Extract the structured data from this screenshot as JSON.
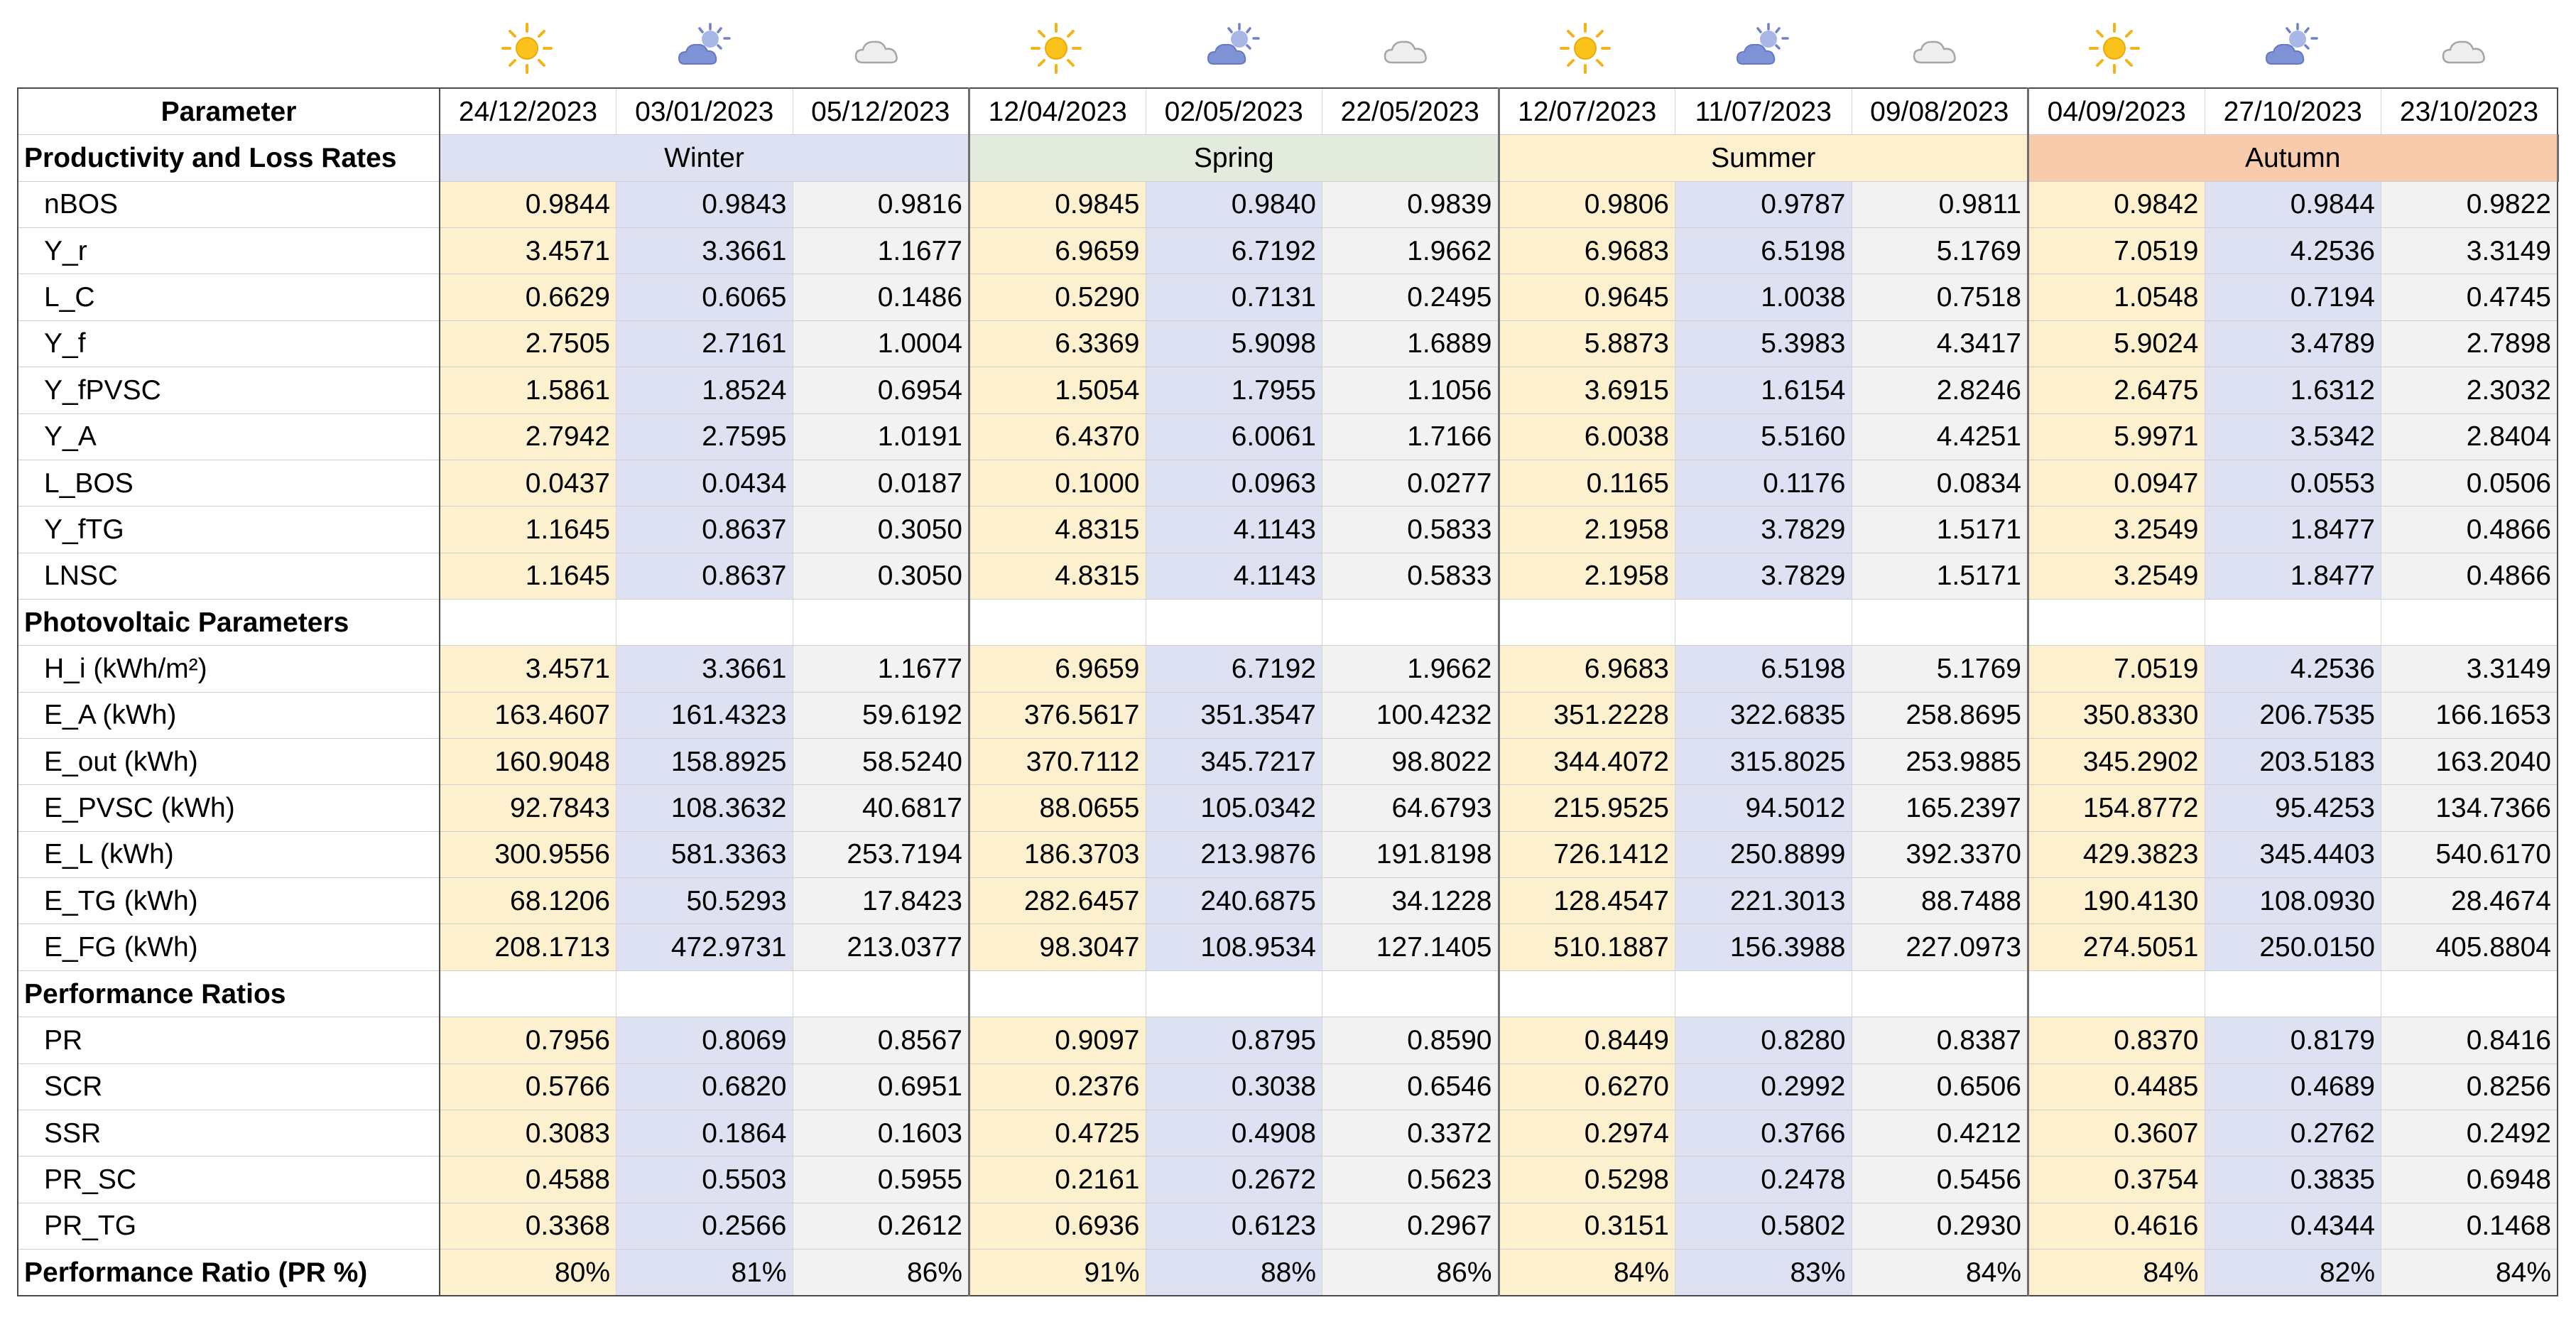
{
  "weather_icons": [
    {
      "name": "sun-icon",
      "kind": "sun"
    },
    {
      "name": "partly-cloudy-icon",
      "kind": "partly"
    },
    {
      "name": "cloud-icon",
      "kind": "cloud"
    },
    {
      "name": "sun-icon",
      "kind": "sun"
    },
    {
      "name": "partly-cloudy-icon",
      "kind": "partly"
    },
    {
      "name": "cloud-icon",
      "kind": "cloud"
    },
    {
      "name": "sun-icon",
      "kind": "sun"
    },
    {
      "name": "partly-cloudy-icon",
      "kind": "partly"
    },
    {
      "name": "cloud-icon",
      "kind": "cloud"
    },
    {
      "name": "sun-icon",
      "kind": "sun"
    },
    {
      "name": "partly-cloudy-icon",
      "kind": "partly"
    },
    {
      "name": "cloud-icon",
      "kind": "cloud"
    }
  ],
  "colors": {
    "sunny_column": "#fdf0cf",
    "partly_column": "#dde1f1",
    "cloudy_column": "#f2f2f2",
    "winter": "#dde1f1",
    "spring": "#e3ecdc",
    "summer": "#fdf0cf",
    "autumn": "#f8cbac",
    "border": "#4a4a4a"
  },
  "table": {
    "header": {
      "label": "Parameter",
      "dates": [
        "24/12/2023",
        "03/01/2023",
        "05/12/2023",
        "12/04/2023",
        "02/05/2023",
        "22/05/2023",
        "12/07/2023",
        "11/07/2023",
        "09/08/2023",
        "04/09/2023",
        "27/10/2023",
        "23/10/2023"
      ]
    },
    "sections": [
      {
        "title": "Productivity and Loss Rates",
        "seasons": [
          {
            "label": "Winter",
            "color": "#dde1f1"
          },
          {
            "label": "Spring",
            "color": "#e3ecdc"
          },
          {
            "label": "Summer",
            "color": "#fdf0cf"
          },
          {
            "label": "Autumn",
            "color": "#f8cbac"
          }
        ],
        "rows": [
          {
            "label": "nBOS",
            "values": [
              "0.9844",
              "0.9843",
              "0.9816",
              "0.9845",
              "0.9840",
              "0.9839",
              "0.9806",
              "0.9787",
              "0.9811",
              "0.9842",
              "0.9844",
              "0.9822"
            ]
          },
          {
            "label": "Y_r",
            "values": [
              "3.4571",
              "3.3661",
              "1.1677",
              "6.9659",
              "6.7192",
              "1.9662",
              "6.9683",
              "6.5198",
              "5.1769",
              "7.0519",
              "4.2536",
              "3.3149"
            ]
          },
          {
            "label": "L_C",
            "values": [
              "0.6629",
              "0.6065",
              "0.1486",
              "0.5290",
              "0.7131",
              "0.2495",
              "0.9645",
              "1.0038",
              "0.7518",
              "1.0548",
              "0.7194",
              "0.4745"
            ]
          },
          {
            "label": "Y_f",
            "values": [
              "2.7505",
              "2.7161",
              "1.0004",
              "6.3369",
              "5.9098",
              "1.6889",
              "5.8873",
              "5.3983",
              "4.3417",
              "5.9024",
              "3.4789",
              "2.7898"
            ]
          },
          {
            "label": "Y_fPVSC",
            "values": [
              "1.5861",
              "1.8524",
              "0.6954",
              "1.5054",
              "1.7955",
              "1.1056",
              "3.6915",
              "1.6154",
              "2.8246",
              "2.6475",
              "1.6312",
              "2.3032"
            ]
          },
          {
            "label": "Y_A",
            "values": [
              "2.7942",
              "2.7595",
              "1.0191",
              "6.4370",
              "6.0061",
              "1.7166",
              "6.0038",
              "5.5160",
              "4.4251",
              "5.9971",
              "3.5342",
              "2.8404"
            ]
          },
          {
            "label": "L_BOS",
            "values": [
              "0.0437",
              "0.0434",
              "0.0187",
              "0.1000",
              "0.0963",
              "0.0277",
              "0.1165",
              "0.1176",
              "0.0834",
              "0.0947",
              "0.0553",
              "0.0506"
            ]
          },
          {
            "label": "Y_fTG",
            "values": [
              "1.1645",
              "0.8637",
              "0.3050",
              "4.8315",
              "4.1143",
              "0.5833",
              "2.1958",
              "3.7829",
              "1.5171",
              "3.2549",
              "1.8477",
              "0.4866"
            ]
          },
          {
            "label": "LNSC",
            "values": [
              "1.1645",
              "0.8637",
              "0.3050",
              "4.8315",
              "4.1143",
              "0.5833",
              "2.1958",
              "3.7829",
              "1.5171",
              "3.2549",
              "1.8477",
              "0.4866"
            ]
          }
        ]
      },
      {
        "title": "Photovoltaic Parameters",
        "rows": [
          {
            "label": "H_i (kWh/m²)",
            "values": [
              "3.4571",
              "3.3661",
              "1.1677",
              "6.9659",
              "6.7192",
              "1.9662",
              "6.9683",
              "6.5198",
              "5.1769",
              "7.0519",
              "4.2536",
              "3.3149"
            ]
          },
          {
            "label": "E_A (kWh)",
            "values": [
              "163.4607",
              "161.4323",
              "59.6192",
              "376.5617",
              "351.3547",
              "100.4232",
              "351.2228",
              "322.6835",
              "258.8695",
              "350.8330",
              "206.7535",
              "166.1653"
            ]
          },
          {
            "label": "E_out (kWh)",
            "values": [
              "160.9048",
              "158.8925",
              "58.5240",
              "370.7112",
              "345.7217",
              "98.8022",
              "344.4072",
              "315.8025",
              "253.9885",
              "345.2902",
              "203.5183",
              "163.2040"
            ]
          },
          {
            "label": "E_PVSC (kWh)",
            "values": [
              "92.7843",
              "108.3632",
              "40.6817",
              "88.0655",
              "105.0342",
              "64.6793",
              "215.9525",
              "94.5012",
              "165.2397",
              "154.8772",
              "95.4253",
              "134.7366"
            ]
          },
          {
            "label": "E_L (kWh)",
            "values": [
              "300.9556",
              "581.3363",
              "253.7194",
              "186.3703",
              "213.9876",
              "191.8198",
              "726.1412",
              "250.8899",
              "392.3370",
              "429.3823",
              "345.4403",
              "540.6170"
            ]
          },
          {
            "label": "E_TG (kWh)",
            "values": [
              "68.1206",
              "50.5293",
              "17.8423",
              "282.6457",
              "240.6875",
              "34.1228",
              "128.4547",
              "221.3013",
              "88.7488",
              "190.4130",
              "108.0930",
              "28.4674"
            ]
          },
          {
            "label": "E_FG (kWh)",
            "values": [
              "208.1713",
              "472.9731",
              "213.0377",
              "98.3047",
              "108.9534",
              "127.1405",
              "510.1887",
              "156.3988",
              "227.0973",
              "274.5051",
              "250.0150",
              "405.8804"
            ]
          }
        ]
      },
      {
        "title": "Performance Ratios",
        "rows": [
          {
            "label": "PR",
            "values": [
              "0.7956",
              "0.8069",
              "0.8567",
              "0.9097",
              "0.8795",
              "0.8590",
              "0.8449",
              "0.8280",
              "0.8387",
              "0.8370",
              "0.8179",
              "0.8416"
            ]
          },
          {
            "label": "SCR",
            "values": [
              "0.5766",
              "0.6820",
              "0.6951",
              "0.2376",
              "0.3038",
              "0.6546",
              "0.6270",
              "0.2992",
              "0.6506",
              "0.4485",
              "0.4689",
              "0.8256"
            ]
          },
          {
            "label": "SSR",
            "values": [
              "0.3083",
              "0.1864",
              "0.1603",
              "0.4725",
              "0.4908",
              "0.3372",
              "0.2974",
              "0.3766",
              "0.4212",
              "0.3607",
              "0.2762",
              "0.2492"
            ]
          },
          {
            "label": "PR_SC",
            "values": [
              "0.4588",
              "0.5503",
              "0.5955",
              "0.2161",
              "0.2672",
              "0.5623",
              "0.5298",
              "0.2478",
              "0.5456",
              "0.3754",
              "0.3835",
              "0.6948"
            ]
          },
          {
            "label": "PR_TG",
            "values": [
              "0.3368",
              "0.2566",
              "0.2612",
              "0.6936",
              "0.6123",
              "0.2967",
              "0.3151",
              "0.5802",
              "0.2930",
              "0.4616",
              "0.4344",
              "0.1468"
            ]
          }
        ]
      }
    ],
    "summary": {
      "label": "Performance Ratio (PR %)",
      "values": [
        "80%",
        "81%",
        "86%",
        "91%",
        "88%",
        "86%",
        "84%",
        "83%",
        "84%",
        "84%",
        "82%",
        "84%"
      ]
    }
  }
}
